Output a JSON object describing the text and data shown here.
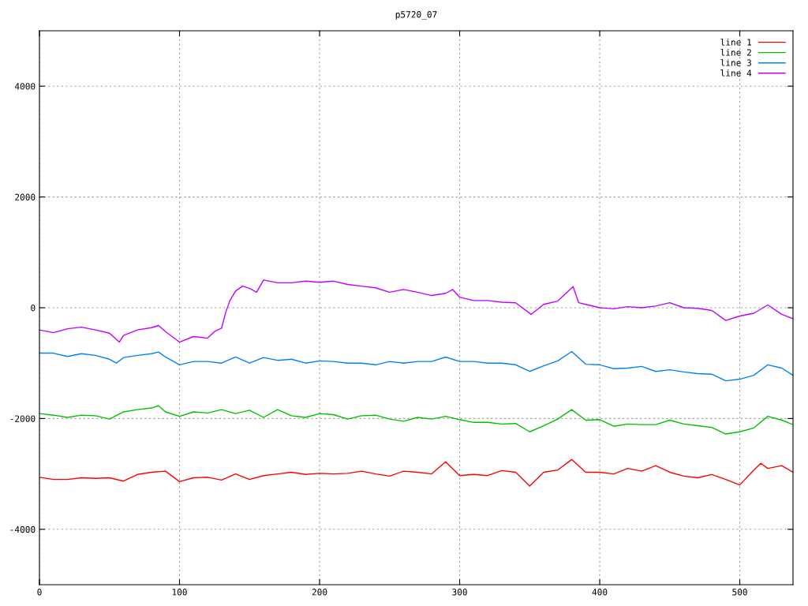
{
  "chart_data": {
    "type": "line",
    "title": "p5720_07",
    "xlim": [
      0,
      538
    ],
    "ylim": [
      -5000,
      5000
    ],
    "xticks": [
      0,
      100,
      200,
      300,
      400,
      500
    ],
    "yticks": [
      {
        "value": -4000,
        "label": "-4000"
      },
      {
        "value": -2000,
        "label": "-2000"
      },
      0,
      2000,
      4000
    ],
    "grid": true,
    "legend": "top right",
    "line_style": "solid",
    "marker": "none",
    "series": [
      {
        "name": "line 1",
        "color": "#ff0000",
        "x": [
          0,
          10,
          20,
          30,
          40,
          50,
          60,
          70,
          80,
          90,
          100,
          110,
          120,
          130,
          140,
          150,
          160,
          170,
          180,
          190,
          200,
          210,
          220,
          230,
          240,
          250,
          260,
          270,
          280,
          290,
          300,
          310,
          320,
          330,
          340,
          350,
          360,
          370,
          380,
          390,
          400,
          410,
          420,
          430,
          440,
          450,
          460,
          470,
          480,
          490,
          500,
          510,
          515,
          520,
          530,
          538
        ],
        "values": [
          -3060,
          -3100,
          -3100,
          -3070,
          -3080,
          -3070,
          -3130,
          -3010,
          -2970,
          -2950,
          -3140,
          -3070,
          -3060,
          -3110,
          -3000,
          -3100,
          -3030,
          -3000,
          -2970,
          -3010,
          -2990,
          -3000,
          -2990,
          -2950,
          -3000,
          -3040,
          -2950,
          -2970,
          -3000,
          -2780,
          -3030,
          -3010,
          -3030,
          -2940,
          -2970,
          -3220,
          -2970,
          -2930,
          -2740,
          -2970,
          -2970,
          -3000,
          -2900,
          -2950,
          -2850,
          -2970,
          -3040,
          -3070,
          -3010,
          -3100,
          -3200,
          -2930,
          -2810,
          -2900,
          -2850,
          -2970
        ]
      },
      {
        "name": "line 2",
        "color": "#00c000",
        "x": [
          0,
          10,
          20,
          30,
          40,
          50,
          60,
          70,
          80,
          85,
          90,
          100,
          110,
          120,
          130,
          140,
          150,
          160,
          170,
          180,
          190,
          200,
          210,
          220,
          230,
          240,
          250,
          260,
          270,
          280,
          290,
          300,
          310,
          320,
          330,
          340,
          350,
          360,
          370,
          380,
          390,
          400,
          410,
          420,
          430,
          440,
          450,
          460,
          470,
          480,
          490,
          500,
          510,
          520,
          530,
          538
        ],
        "values": [
          -1910,
          -1940,
          -1980,
          -1940,
          -1950,
          -2010,
          -1880,
          -1840,
          -1810,
          -1770,
          -1880,
          -1960,
          -1880,
          -1900,
          -1840,
          -1910,
          -1850,
          -1980,
          -1840,
          -1950,
          -1980,
          -1910,
          -1930,
          -2010,
          -1950,
          -1940,
          -2010,
          -2050,
          -1980,
          -2010,
          -1960,
          -2020,
          -2070,
          -2070,
          -2100,
          -2090,
          -2240,
          -2130,
          -2010,
          -1840,
          -2030,
          -2020,
          -2140,
          -2100,
          -2110,
          -2110,
          -2030,
          -2100,
          -2130,
          -2160,
          -2280,
          -2240,
          -2170,
          -1960,
          -2030,
          -2110
        ]
      },
      {
        "name": "line 3",
        "color": "#0080ff",
        "x": [
          0,
          10,
          20,
          30,
          40,
          50,
          55,
          60,
          70,
          80,
          85,
          90,
          100,
          110,
          120,
          130,
          140,
          150,
          160,
          170,
          180,
          190,
          200,
          210,
          220,
          230,
          240,
          250,
          260,
          270,
          280,
          290,
          300,
          310,
          320,
          330,
          340,
          350,
          360,
          370,
          380,
          390,
          400,
          410,
          420,
          430,
          440,
          450,
          460,
          470,
          480,
          490,
          500,
          510,
          520,
          530,
          538
        ],
        "values": [
          -820,
          -820,
          -880,
          -830,
          -860,
          -930,
          -1000,
          -900,
          -860,
          -830,
          -800,
          -890,
          -1030,
          -970,
          -970,
          -1000,
          -890,
          -1000,
          -900,
          -950,
          -930,
          -1000,
          -960,
          -970,
          -1000,
          -1000,
          -1030,
          -970,
          -1000,
          -970,
          -970,
          -890,
          -970,
          -970,
          -1000,
          -1000,
          -1030,
          -1150,
          -1050,
          -960,
          -790,
          -1020,
          -1030,
          -1100,
          -1090,
          -1060,
          -1150,
          -1120,
          -1160,
          -1190,
          -1200,
          -1320,
          -1290,
          -1220,
          -1030,
          -1090,
          -1220
        ]
      },
      {
        "name": "line 4",
        "color": "#c000ff",
        "x": [
          0,
          10,
          20,
          30,
          40,
          50,
          57,
          60,
          70,
          80,
          85,
          90,
          100,
          110,
          120,
          125,
          130,
          133,
          136,
          140,
          145,
          150,
          155,
          160,
          170,
          180,
          190,
          200,
          210,
          220,
          230,
          240,
          250,
          260,
          270,
          280,
          290,
          295,
          300,
          310,
          320,
          330,
          340,
          351,
          360,
          370,
          381,
          385,
          390,
          400,
          410,
          420,
          430,
          440,
          450,
          460,
          470,
          480,
          490,
          500,
          510,
          520,
          530,
          538
        ],
        "values": [
          -400,
          -450,
          -380,
          -350,
          -400,
          -460,
          -620,
          -500,
          -400,
          -360,
          -320,
          -430,
          -620,
          -520,
          -550,
          -430,
          -370,
          -80,
          130,
          300,
          390,
          350,
          280,
          500,
          450,
          450,
          480,
          460,
          480,
          420,
          390,
          360,
          280,
          330,
          280,
          220,
          260,
          330,
          190,
          130,
          130,
          100,
          90,
          -120,
          60,
          120,
          380,
          90,
          60,
          0,
          -20,
          20,
          0,
          30,
          90,
          0,
          -10,
          -50,
          -230,
          -150,
          -100,
          50,
          -120,
          -200
        ]
      }
    ]
  }
}
